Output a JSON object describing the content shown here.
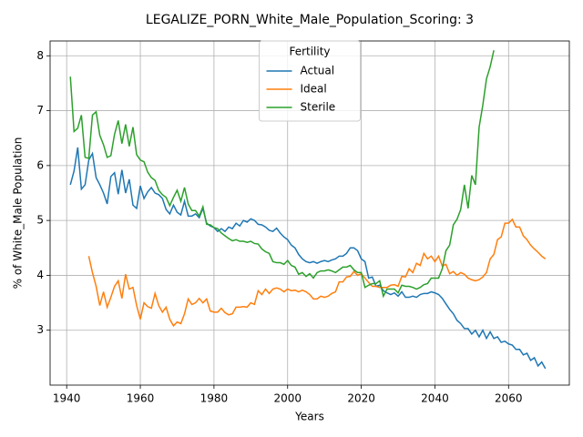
{
  "chart_data": {
    "type": "line",
    "title": "LEGALIZE_PORN_White_Male_Population_Scoring: 3",
    "xlabel": "Years",
    "ylabel": "% of White_Male Population",
    "legend_title": "Fertility",
    "legend": "upper center",
    "grid": true,
    "x": [
      1941,
      1942,
      1943,
      1944,
      1945,
      1946,
      1947,
      1948,
      1949,
      1950,
      1951,
      1952,
      1953,
      1954,
      1955,
      1956,
      1957,
      1958,
      1959,
      1960,
      1961,
      1962,
      1963,
      1964,
      1965,
      1966,
      1967,
      1968,
      1969,
      1970,
      1971,
      1972,
      1973,
      1974,
      1975,
      1976,
      1977,
      1978,
      1979,
      1980,
      1981,
      1982,
      1983,
      1984,
      1985,
      1986,
      1987,
      1988,
      1989,
      1990,
      1991,
      1992,
      1993,
      1994,
      1995,
      1996,
      1997,
      1998,
      1999,
      2000,
      2001,
      2002,
      2003,
      2004,
      2005,
      2006,
      2007,
      2008,
      2009,
      2010,
      2011,
      2012,
      2013,
      2014,
      2015,
      2016,
      2017,
      2018,
      2019,
      2020,
      2021,
      2022,
      2023,
      2024,
      2025,
      2026,
      2027,
      2028,
      2029,
      2030,
      2031,
      2032,
      2033,
      2034,
      2035,
      2036,
      2037,
      2038,
      2039,
      2040,
      2041,
      2042,
      2043,
      2044,
      2045,
      2046,
      2047,
      2048,
      2049,
      2050,
      2051,
      2052,
      2053,
      2054,
      2055,
      2056,
      2057,
      2058,
      2059,
      2060,
      2061,
      2062,
      2063,
      2064,
      2065,
      2066,
      2067,
      2068,
      2069,
      2070
    ],
    "series": [
      {
        "name": "Actual",
        "color": "#1f77b4",
        "values": [
          5.65,
          5.9,
          6.33,
          5.57,
          5.65,
          6.1,
          6.22,
          5.78,
          5.65,
          5.5,
          5.3,
          5.8,
          5.87,
          5.48,
          5.92,
          5.5,
          5.75,
          5.28,
          5.22,
          5.63,
          5.4,
          5.52,
          5.6,
          5.5,
          5.47,
          5.4,
          5.2,
          5.12,
          5.28,
          5.15,
          5.1,
          5.35,
          5.08,
          5.08,
          5.12,
          5.05,
          5.22,
          4.95,
          4.9,
          4.87,
          4.8,
          4.85,
          4.8,
          4.88,
          4.85,
          4.95,
          4.9,
          5.0,
          4.97,
          5.03,
          5.0,
          4.93,
          4.92,
          4.88,
          4.82,
          4.8,
          4.86,
          4.77,
          4.7,
          4.65,
          4.55,
          4.5,
          4.38,
          4.3,
          4.25,
          4.23,
          4.25,
          4.22,
          4.25,
          4.27,
          4.25,
          4.28,
          4.3,
          4.35,
          4.35,
          4.4,
          4.5,
          4.5,
          4.45,
          4.3,
          4.25,
          3.95,
          3.97,
          3.8,
          3.82,
          3.72,
          3.68,
          3.65,
          3.68,
          3.62,
          3.7,
          3.6,
          3.6,
          3.62,
          3.6,
          3.65,
          3.67,
          3.67,
          3.7,
          3.68,
          3.65,
          3.58,
          3.48,
          3.38,
          3.3,
          3.18,
          3.12,
          3.03,
          3.03,
          2.93,
          3.0,
          2.88,
          3.0,
          2.85,
          2.97,
          2.85,
          2.88,
          2.78,
          2.8,
          2.75,
          2.73,
          2.65,
          2.65,
          2.55,
          2.58,
          2.45,
          2.5,
          2.35,
          2.42,
          2.3
        ]
      },
      {
        "name": "Ideal",
        "color": "#ff7f0e",
        "values": [
          null,
          null,
          null,
          null,
          null,
          4.35,
          4.05,
          3.8,
          3.45,
          3.7,
          3.42,
          3.6,
          3.8,
          3.9,
          3.58,
          4.02,
          3.75,
          3.78,
          3.45,
          3.2,
          3.5,
          3.43,
          3.4,
          3.67,
          3.45,
          3.33,
          3.42,
          3.2,
          3.08,
          3.15,
          3.12,
          3.3,
          3.57,
          3.47,
          3.5,
          3.58,
          3.5,
          3.57,
          3.35,
          3.33,
          3.33,
          3.4,
          3.32,
          3.28,
          3.3,
          3.42,
          3.42,
          3.43,
          3.42,
          3.5,
          3.47,
          3.72,
          3.65,
          3.75,
          3.67,
          3.75,
          3.77,
          3.75,
          3.7,
          3.75,
          3.72,
          3.73,
          3.7,
          3.73,
          3.7,
          3.65,
          3.57,
          3.57,
          3.62,
          3.6,
          3.62,
          3.67,
          3.7,
          3.88,
          3.88,
          3.97,
          3.98,
          4.07,
          4.0,
          4.03,
          3.95,
          3.87,
          3.8,
          3.8,
          3.78,
          3.78,
          3.78,
          3.82,
          3.83,
          3.8,
          3.98,
          3.97,
          4.12,
          4.05,
          4.22,
          4.18,
          4.4,
          4.3,
          4.35,
          4.25,
          4.35,
          4.17,
          4.2,
          4.03,
          4.07,
          4.0,
          4.05,
          4.02,
          3.95,
          3.92,
          3.9,
          3.92,
          3.97,
          4.05,
          4.3,
          4.38,
          4.65,
          4.7,
          4.95,
          4.95,
          5.02,
          4.88,
          4.88,
          4.72,
          4.65,
          4.55,
          4.48,
          4.42,
          4.35,
          4.3
        ]
      },
      {
        "name": "Sterile",
        "color": "#2ca02c",
        "values": [
          7.62,
          6.62,
          6.68,
          6.92,
          6.15,
          6.13,
          6.92,
          6.98,
          6.55,
          6.38,
          6.15,
          6.18,
          6.57,
          6.82,
          6.4,
          6.75,
          6.35,
          6.7,
          6.2,
          6.1,
          6.07,
          5.88,
          5.78,
          5.73,
          5.55,
          5.47,
          5.42,
          5.27,
          5.42,
          5.55,
          5.35,
          5.6,
          5.3,
          5.18,
          5.18,
          5.08,
          5.25,
          4.93,
          4.92,
          4.87,
          4.85,
          4.77,
          4.72,
          4.67,
          4.63,
          4.65,
          4.62,
          4.62,
          4.6,
          4.62,
          4.58,
          4.57,
          4.48,
          4.43,
          4.4,
          4.25,
          4.23,
          4.23,
          4.2,
          4.27,
          4.18,
          4.15,
          4.02,
          4.05,
          3.98,
          4.03,
          3.95,
          4.05,
          4.08,
          4.08,
          4.1,
          4.08,
          4.05,
          4.1,
          4.15,
          4.15,
          4.18,
          4.1,
          4.05,
          4.05,
          3.78,
          3.82,
          3.85,
          3.85,
          3.9,
          3.62,
          3.75,
          3.75,
          3.75,
          3.68,
          3.82,
          3.8,
          3.8,
          3.78,
          3.75,
          3.78,
          3.83,
          3.85,
          3.95,
          3.95,
          3.95,
          4.12,
          4.45,
          4.55,
          4.92,
          5.02,
          5.2,
          5.65,
          5.22,
          5.82,
          5.65,
          6.7,
          7.1,
          7.58,
          7.8,
          8.1,
          null,
          null,
          null,
          null,
          null,
          null,
          null,
          null,
          null,
          null,
          null,
          null,
          null,
          null
        ]
      }
    ],
    "xlim": [
      1935.5,
      2076.5
    ],
    "xticks": [
      1940,
      1960,
      1980,
      2000,
      2020,
      2040,
      2060
    ],
    "ylim": [
      2.0,
      8.27
    ],
    "yticks": [
      3,
      4,
      5,
      6,
      7,
      8
    ]
  }
}
